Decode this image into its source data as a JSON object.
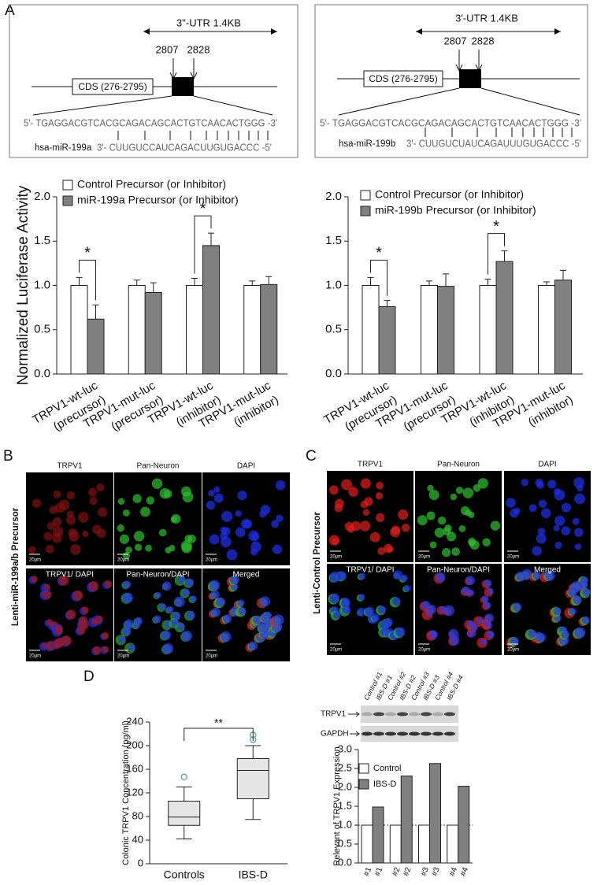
{
  "panel_labels": [
    "A",
    "B",
    "C",
    "D"
  ],
  "diagrams": [
    {
      "utr": "3\"-UTR  1.4KB",
      "sites": [
        "2807",
        "2828"
      ],
      "cds": "CDS (276-2795)",
      "target": "5'- TGAGGACGTCACGCAGACAGCACTGTCAACACTGGG -3'",
      "mirna": "hsa-miR-199a",
      "mirna_seq": "3'- CUUGUCCAUCAGACUUGUGACCC -5'"
    },
    {
      "utr": "3'-UTR  1.4KB",
      "sites": [
        "2807",
        "2828"
      ],
      "cds": "CDS (276-2795)",
      "target": "5'- TGAGGACGTCACGCAGACAGCACTGTCAACACTGGG -3'",
      "mirna": "hsa-miR-199b",
      "mirna_seq": "3'- CUUGUCUAUCAGAUUUGUGACCC -5'"
    }
  ],
  "chart_data": [
    {
      "type": "bar",
      "y_label": "Normalized Luciferase Activity",
      "categories": [
        [
          "TRPV1-wt-luc",
          "(precursor)"
        ],
        [
          "TRPV1-mut-luc",
          "(precursor)"
        ],
        [
          "TRPV1-wt-luc",
          "(inhibitor)"
        ],
        [
          "TRPV1-mut-luc",
          "(inhibitor)"
        ]
      ],
      "series": [
        {
          "name": "Control Precursor (or Inhibitor)",
          "color": "#ffffff",
          "values": [
            1.0,
            1.0,
            1.0,
            1.0
          ],
          "errors": [
            0.09,
            0.06,
            0.08,
            0.05
          ]
        },
        {
          "name": "miR-199a Precursor (or Inhibitor)",
          "color": "#808080",
          "values": [
            0.62,
            0.92,
            1.45,
            1.01
          ],
          "errors": [
            0.16,
            0.11,
            0.14,
            0.09
          ]
        }
      ],
      "significance": [
        "*",
        null,
        "*",
        null
      ],
      "ylim": [
        0,
        2
      ],
      "yticks": [
        {
          "value": 0,
          "label": "0.0"
        },
        0.5,
        {
          "value": 1,
          "label": "1.0"
        },
        1.5,
        {
          "value": 2,
          "label": "2.0"
        }
      ]
    },
    {
      "type": "bar",
      "categories": [
        [
          "TRPV1-wt-luc",
          "(precursor)"
        ],
        [
          "TRPV1-mut-luc",
          "(precursor)"
        ],
        [
          "TRPV1-wt-luc",
          "(inhibitor)"
        ],
        [
          "TRPV1-mut-luc",
          "(inhibitor)"
        ]
      ],
      "series": [
        {
          "name": "Control Precursor (or Inhibitor)",
          "color": "#ffffff",
          "values": [
            1.0,
            1.0,
            1.0,
            1.0
          ],
          "errors": [
            0.09,
            0.05,
            0.07,
            0.04
          ]
        },
        {
          "name": "miR-199b Precursor (or Inhibitor)",
          "color": "#808080",
          "values": [
            0.76,
            0.99,
            1.27,
            1.06
          ],
          "errors": [
            0.07,
            0.14,
            0.12,
            0.11
          ]
        }
      ],
      "significance": [
        "*",
        null,
        "*",
        null
      ],
      "ylim": [
        0,
        2
      ],
      "yticks": [
        {
          "value": 0,
          "label": "0.0"
        },
        0.5,
        {
          "value": 1,
          "label": "1.0"
        },
        1.5,
        {
          "value": 2,
          "label": "2.0"
        }
      ]
    },
    {
      "type": "box",
      "y_label": "Colonic TRPV1 Concentration (pg/ml)",
      "categories": [
        "Controls",
        "IBS-D"
      ],
      "boxes": [
        {
          "whislo": 42,
          "q1": 65,
          "med": 79,
          "q3": 106,
          "whishi": 130,
          "fliers": [
            147
          ]
        },
        {
          "whislo": 75,
          "q1": 110,
          "med": 158,
          "q3": 178,
          "whishi": 200,
          "fliers": [
            210,
            218
          ]
        }
      ],
      "color": "#e6e6e6",
      "flier_color": "#6aa9a0",
      "significance": "**",
      "ylim": [
        0,
        240
      ],
      "yticks": [
        0,
        40,
        80,
        120,
        160,
        200,
        240
      ]
    },
    {
      "type": "bar",
      "y_label": "Relevant of TRPV1 Expression",
      "categories": [
        "#1",
        "#2",
        "#3",
        "#4"
      ],
      "series": [
        {
          "name": "Control",
          "color": "#ffffff",
          "values": [
            1,
            1,
            1,
            1
          ]
        },
        {
          "name": "IBS-D",
          "color": "#808080",
          "values": [
            1.48,
            2.3,
            2.63,
            2.03
          ]
        }
      ],
      "reference_line": 1,
      "ylim": [
        0,
        3
      ],
      "yticks": [
        {
          "value": 0,
          "label": "0.0"
        },
        0.5,
        {
          "value": 1,
          "label": "1.0"
        },
        1.5,
        {
          "value": 2,
          "label": "2.0"
        },
        2.5,
        {
          "value": 3,
          "label": "3.0"
        }
      ]
    }
  ],
  "blot": {
    "lanes": [
      "Control #1",
      "IBS-D #1",
      "Control #2",
      "IBS-D #2",
      "Control #3",
      "IBS-D #3",
      "Control #4",
      "IBS-D #4"
    ],
    "rows": [
      "TRPV1",
      "GAPDH"
    ]
  },
  "images": {
    "B": {
      "row_label": "Lenti-miR-199a/b Precursor",
      "titles": [
        "TRPV1",
        "Pan-Neuron",
        "DAPI",
        "TRPV1/ DAPI",
        "Pan-Neuron/DAPI",
        "Merged"
      ]
    },
    "C": {
      "row_label": "Lenti-Control Precursor",
      "titles": [
        "TRPV1",
        "Pan-Neuron",
        "DAPI",
        "TRPV1/ DAPI",
        "Pan-Neuron/DAPI",
        "Merged"
      ]
    },
    "scale_bar": "20μm"
  }
}
